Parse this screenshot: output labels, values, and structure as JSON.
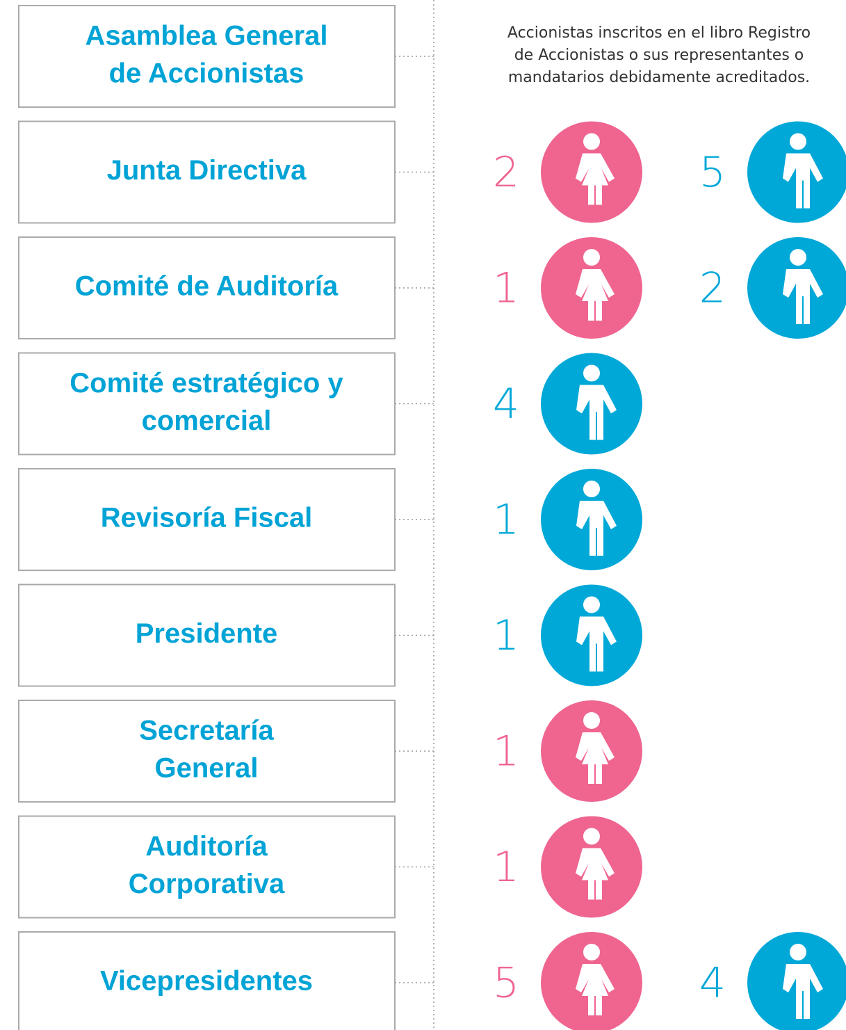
{
  "rows": [
    {
      "lines": [
        "Asamblea General",
        "de Accionistas"
      ],
      "description": [
        "Accionistas inscritos en el libro Registro",
        "de Accionistas o sus representantes o",
        "mandatarios debidamente acreditados."
      ],
      "people": []
    },
    {
      "lines": [
        "Junta Directiva"
      ],
      "people": [
        {
          "count": 2,
          "color": "#ef6590",
          "figure": "female"
        },
        {
          "count": 5,
          "color": "#00a8d8",
          "figure": "male"
        }
      ]
    },
    {
      "lines": [
        "Comité de Auditoría"
      ],
      "people": [
        {
          "count": 1,
          "color": "#ef6590",
          "figure": "female"
        },
        {
          "count": 2,
          "color": "#00a8d8",
          "figure": "male"
        }
      ]
    },
    {
      "lines": [
        "Comité estratégico y",
        "comercial"
      ],
      "people": [
        {
          "count": 4,
          "color": "#00a8d8",
          "figure": "male"
        }
      ]
    },
    {
      "lines": [
        "Revisoría Fiscal"
      ],
      "people": [
        {
          "count": 1,
          "color": "#00a8d8",
          "figure": "male"
        }
      ]
    },
    {
      "lines": [
        "Presidente"
      ],
      "people": [
        {
          "count": 1,
          "color": "#00a8d8",
          "figure": "male"
        }
      ]
    },
    {
      "lines": [
        "Secretaría",
        "General"
      ],
      "people": [
        {
          "count": 1,
          "color": "#ef6590",
          "figure": "female"
        }
      ]
    },
    {
      "lines": [
        "Auditoría",
        "Corporativa"
      ],
      "people": [
        {
          "count": 1,
          "color": "#ef6590",
          "figure": "female"
        }
      ]
    },
    {
      "lines": [
        "Vicepresidentes"
      ],
      "people": [
        {
          "count": 5,
          "color": "#ef6590",
          "figure": "female"
        },
        {
          "count": 4,
          "color": "#00a8d8",
          "figure": "male"
        }
      ]
    }
  ]
}
